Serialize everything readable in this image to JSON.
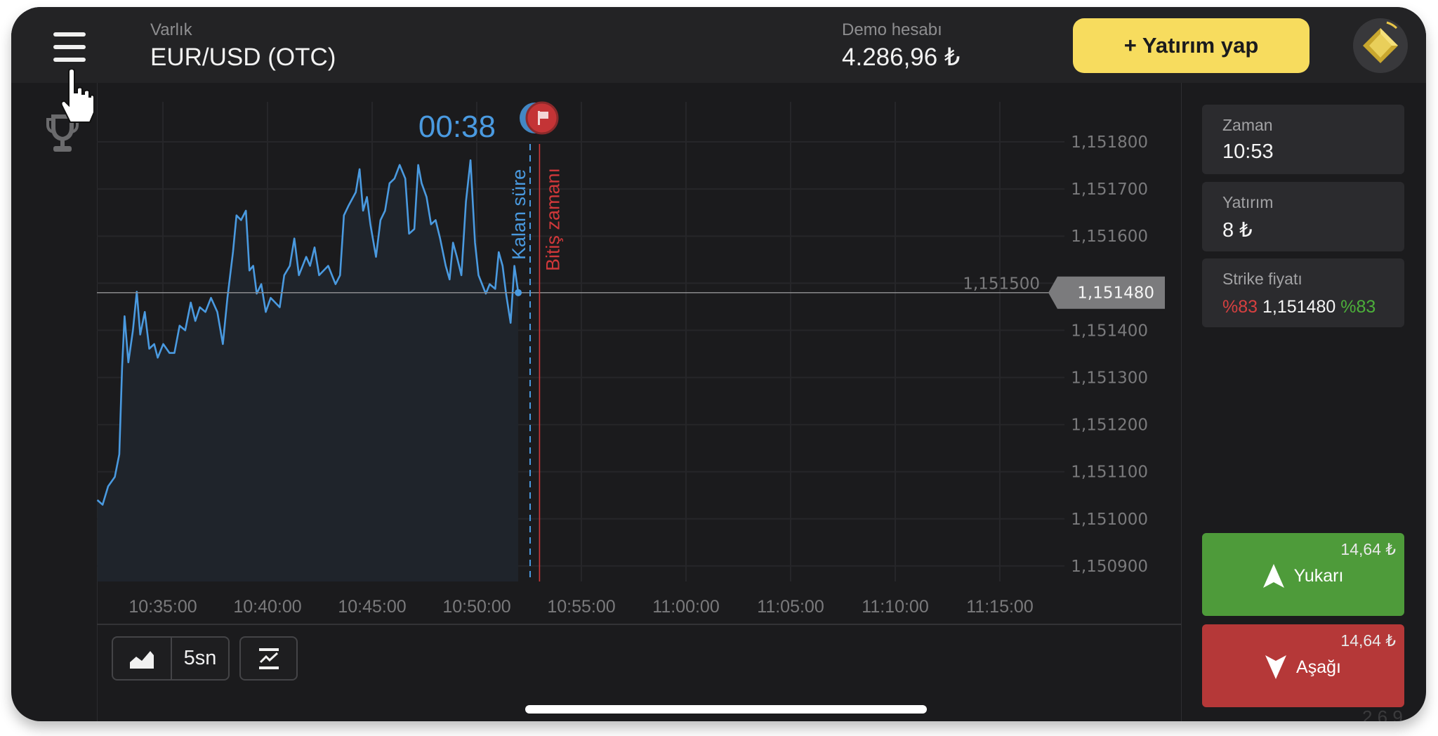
{
  "header": {
    "asset_label": "Varlık",
    "asset_value": "EUR/USD (OTC)",
    "account_label": "Demo hesabı",
    "balance": "4.286,96 ₺",
    "invest_button": "+ Yatırım yap",
    "menu_icon": "hamburger-menu-icon",
    "avatar_icon": "gold-diamond-badge-icon"
  },
  "sidebar": {
    "trophy_icon": "trophy-icon"
  },
  "timer": {
    "countdown": "00:38",
    "flag_icon": "finish-flag-icon"
  },
  "markers": {
    "remaining_label": "Kalan süre",
    "expiry_label": "Bitiş zamanı",
    "remaining_time": "10:52:33",
    "expiry_time": "10:53:00"
  },
  "price_tag": "1,151480",
  "panel": {
    "time_label": "Zaman",
    "time_value": "10:53",
    "investment_label": "Yatırım",
    "investment_value": "8 ₺",
    "strike_label": "Strike fiyatı",
    "strike_pct_down": "%83",
    "strike_value": "1,151480",
    "strike_pct_up": "%83",
    "up_amount": "14,64 ₺",
    "up_label": "Yukarı",
    "down_amount": "14,64 ₺",
    "down_label": "Aşağı",
    "version": "2.6.9"
  },
  "toolbar": {
    "chart_type_icon": "area-chart-icon",
    "interval": "5sn",
    "indicators_icon": "indicators-icon"
  },
  "colors": {
    "accent_blue": "#4a9ae0",
    "expiry_red": "#d0383a",
    "up_green": "#4e9b3a",
    "down_red": "#b53838",
    "invest_yellow": "#f7dc5e",
    "pct_down": "#d64040",
    "pct_up": "#4caf3a"
  },
  "chart_data": {
    "type": "area",
    "x_ticks": [
      "10:35:00",
      "10:40:00",
      "10:45:00",
      "10:50:00",
      "10:55:00",
      "11:00:00",
      "11:05:00",
      "11:10:00",
      "11:15:00"
    ],
    "y_ticks": [
      "1,151800",
      "1,151700",
      "1,151600",
      "1,151500",
      "1,151400",
      "1,151300",
      "1,151200",
      "1,151100",
      "1,151000",
      "1,150900"
    ],
    "y_tick_values": [
      1.1518,
      1.1517,
      1.1516,
      1.1515,
      1.1514,
      1.1513,
      1.1512,
      1.1511,
      1.151,
      1.1509
    ],
    "ylim": [
      1.15088,
      1.15184
    ],
    "grid": true,
    "current_price": 1.15148,
    "points": [
      [
        "10:31:52",
        1.15104
      ],
      [
        "10:32:07",
        1.15103
      ],
      [
        "10:32:23",
        1.151069
      ],
      [
        "10:32:42",
        1.151089
      ],
      [
        "10:32:55",
        1.151137
      ],
      [
        "10:33:03",
        1.151322
      ],
      [
        "10:33:10",
        1.15143
      ],
      [
        "10:33:21",
        1.151332
      ],
      [
        "10:33:34",
        1.1514
      ],
      [
        "10:33:45",
        1.151482
      ],
      [
        "10:33:55",
        1.151391
      ],
      [
        "10:34:08",
        1.151439
      ],
      [
        "10:34:21",
        1.151361
      ],
      [
        "10:34:35",
        1.151371
      ],
      [
        "10:34:45",
        1.151342
      ],
      [
        "10:35:01",
        1.151371
      ],
      [
        "10:35:19",
        1.151352
      ],
      [
        "10:35:33",
        1.151352
      ],
      [
        "10:35:48",
        1.15141
      ],
      [
        "10:36:04",
        1.1514
      ],
      [
        "10:36:20",
        1.151459
      ],
      [
        "10:36:33",
        1.15142
      ],
      [
        "10:36:46",
        1.151449
      ],
      [
        "10:37:02",
        1.151439
      ],
      [
        "10:37:18",
        1.151469
      ],
      [
        "10:37:36",
        1.151439
      ],
      [
        "10:37:52",
        1.151371
      ],
      [
        "10:38:05",
        1.151469
      ],
      [
        "10:38:21",
        1.151566
      ],
      [
        "10:38:31",
        1.151644
      ],
      [
        "10:38:44",
        1.151634
      ],
      [
        "10:38:58",
        1.151654
      ],
      [
        "10:39:08",
        1.151527
      ],
      [
        "10:39:19",
        1.151537
      ],
      [
        "10:39:29",
        1.151478
      ],
      [
        "10:39:42",
        1.151498
      ],
      [
        "10:39:55",
        1.151439
      ],
      [
        "10:40:09",
        1.151469
      ],
      [
        "10:40:35",
        1.151449
      ],
      [
        "10:40:48",
        1.151517
      ],
      [
        "10:41:04",
        1.151537
      ],
      [
        "10:41:17",
        1.151595
      ],
      [
        "10:41:30",
        1.151517
      ],
      [
        "10:41:51",
        1.151556
      ],
      [
        "10:42:02",
        1.151537
      ],
      [
        "10:42:15",
        1.151576
      ],
      [
        "10:42:28",
        1.151517
      ],
      [
        "10:42:54",
        1.151537
      ],
      [
        "10:43:15",
        1.151498
      ],
      [
        "10:43:28",
        1.151517
      ],
      [
        "10:43:39",
        1.151644
      ],
      [
        "10:43:52",
        1.151664
      ],
      [
        "10:44:13",
        1.151693
      ],
      [
        "10:44:24",
        1.151742
      ],
      [
        "10:44:34",
        1.151654
      ],
      [
        "10:44:45",
        1.151683
      ],
      [
        "10:44:55",
        1.151625
      ],
      [
        "10:45:11",
        1.151556
      ],
      [
        "10:45:24",
        1.151634
      ],
      [
        "10:45:37",
        1.151654
      ],
      [
        "10:45:50",
        1.151712
      ],
      [
        "10:46:04",
        1.151722
      ],
      [
        "10:46:19",
        1.151751
      ],
      [
        "10:46:35",
        1.151722
      ],
      [
        "10:46:46",
        1.151605
      ],
      [
        "10:47:01",
        1.151615
      ],
      [
        "10:47:12",
        1.151751
      ],
      [
        "10:47:22",
        1.151712
      ],
      [
        "10:47:36",
        1.151683
      ],
      [
        "10:47:49",
        1.151625
      ],
      [
        "10:48:02",
        1.151634
      ],
      [
        "10:48:15",
        1.151595
      ],
      [
        "10:48:31",
        1.151537
      ],
      [
        "10:48:42",
        1.151508
      ],
      [
        "10:48:52",
        1.151586
      ],
      [
        "10:49:03",
        1.151556
      ],
      [
        "10:49:16",
        1.151517
      ],
      [
        "10:49:29",
        1.151673
      ],
      [
        "10:49:42",
        1.151761
      ],
      [
        "10:49:55",
        1.151586
      ],
      [
        "10:50:05",
        1.151517
      ],
      [
        "10:50:26",
        1.151478
      ],
      [
        "10:50:37",
        1.151498
      ],
      [
        "10:50:53",
        1.151488
      ],
      [
        "10:51:03",
        1.151566
      ],
      [
        "10:51:14",
        1.151537
      ],
      [
        "10:51:24",
        1.151478
      ],
      [
        "10:51:37",
        1.151416
      ],
      [
        "10:51:48",
        1.151537
      ],
      [
        "10:51:59",
        1.15148
      ]
    ]
  }
}
